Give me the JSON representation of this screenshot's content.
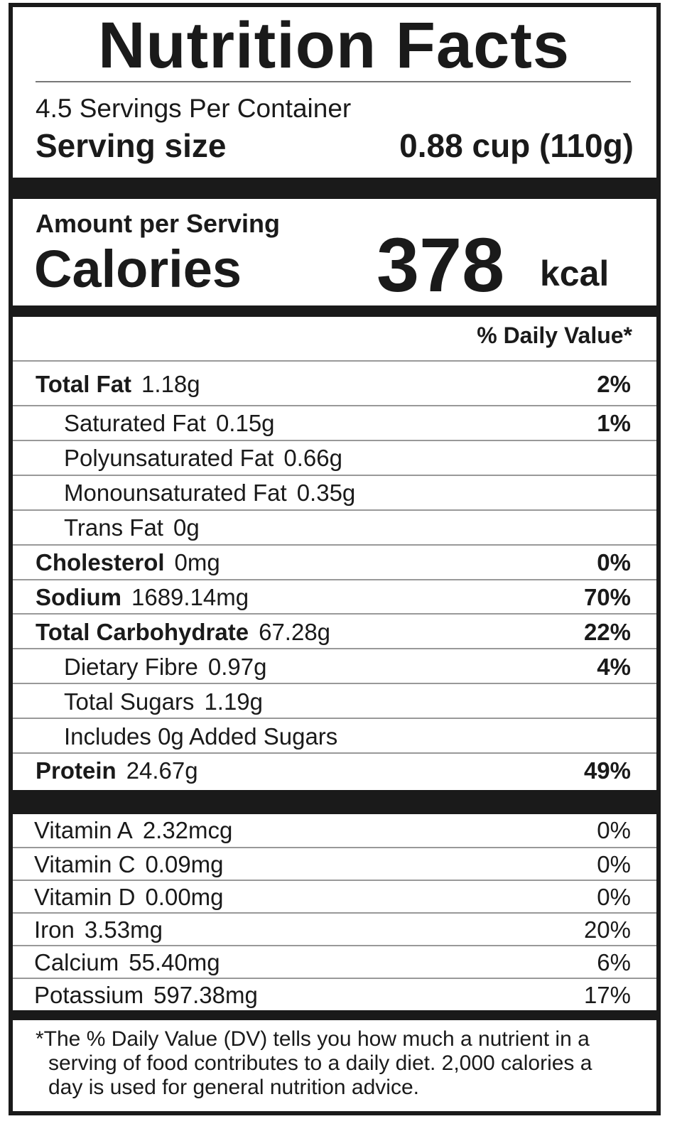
{
  "title": "Nutrition Facts",
  "servings": "4.5 Servings Per Container",
  "serving_size": {
    "label": "Serving size",
    "value": "0.88 cup (110g)"
  },
  "calories": {
    "heading": "Amount per Serving",
    "label": "Calories",
    "value": "378",
    "unit": "kcal"
  },
  "daily_value_header": "% Daily Value*",
  "nutrients": [
    {
      "name": "Total Fat",
      "amount": "1.18g",
      "dv": "2%",
      "indent": false
    },
    {
      "name": "Saturated Fat",
      "amount": "0.15g",
      "dv": "1%",
      "indent": true
    },
    {
      "name": "Polyunsaturated Fat",
      "amount": "0.66g",
      "indent": true
    },
    {
      "name": "Monounsaturated Fat",
      "amount": "0.35g",
      "indent": true
    },
    {
      "name": "Trans Fat",
      "amount": "0g",
      "indent": true
    },
    {
      "name": "Cholesterol",
      "amount": "0mg",
      "dv": "0%",
      "indent": false
    },
    {
      "name": "Sodium",
      "amount": "1689.14mg",
      "dv": "70%",
      "indent": false
    },
    {
      "name": "Total Carbohydrate",
      "amount": "67.28g",
      "dv": "22%",
      "indent": false
    },
    {
      "name": "Dietary Fibre",
      "amount": "0.97g",
      "dv": "4%",
      "indent": true
    },
    {
      "name": "Total Sugars",
      "amount": "1.19g",
      "indent": true
    },
    {
      "name": "Includes 0g Added Sugars",
      "indent": true
    },
    {
      "name": "Protein",
      "amount": "24.67g",
      "dv": "49%",
      "indent": false
    }
  ],
  "vitamins": [
    {
      "name": "Vitamin A",
      "amount": "2.32mcg",
      "dv": "0%"
    },
    {
      "name": "Vitamin C",
      "amount": "0.09mg",
      "dv": "0%"
    },
    {
      "name": "Vitamin D",
      "amount": "0.00mg",
      "dv": "0%"
    },
    {
      "name": "Iron",
      "amount": "3.53mg",
      "dv": "20%"
    },
    {
      "name": "Calcium",
      "amount": "55.40mg",
      "dv": "6%"
    },
    {
      "name": "Potassium",
      "amount": "597.38mg",
      "dv": "17%"
    }
  ],
  "footnote": "*The % Daily Value (DV) tells you how much a nutrient in a serving of food contributes to a daily diet. 2,000 calories a day is used for general nutrition advice."
}
